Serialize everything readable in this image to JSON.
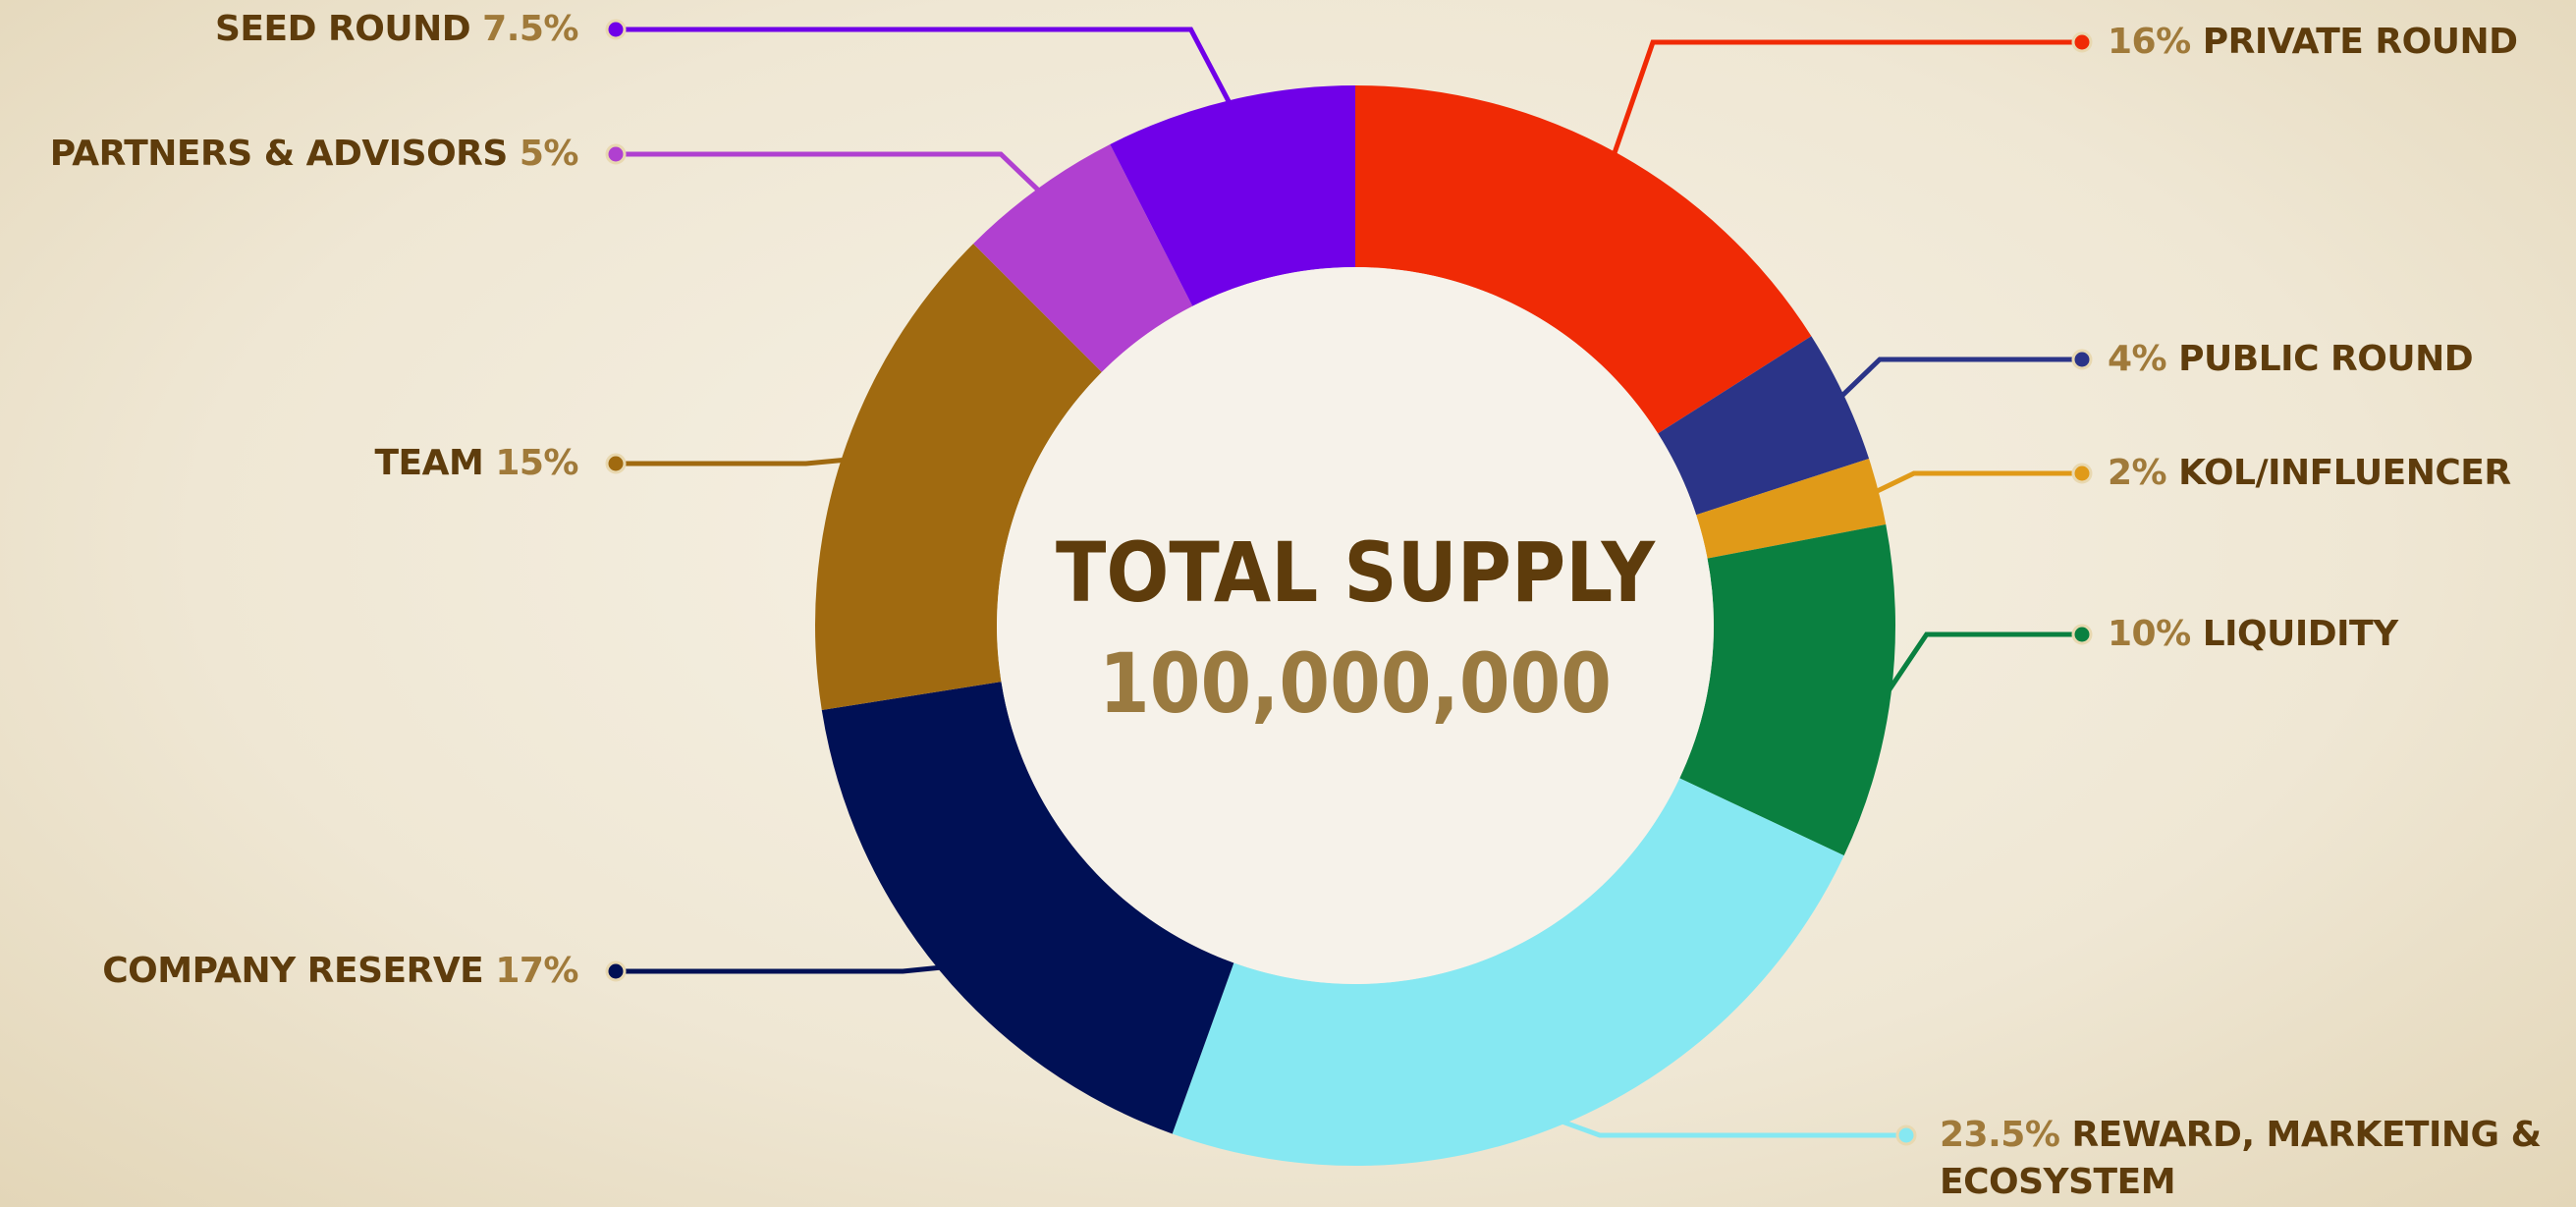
{
  "chart_data": {
    "type": "donut",
    "center_title": "TOTAL SUPPLY",
    "center_value": "100,000,000",
    "categories": [
      "PRIVATE ROUND",
      "PUBLIC ROUND",
      "KOL/INFLUENCER",
      "LIQUIDITY",
      "REWARD, MARKETING & ECOSYSTEM",
      "COMPANY RESERVE",
      "TEAM",
      "PARTNERS & ADVISORS",
      "SEED ROUND"
    ],
    "values": [
      16,
      4,
      2,
      10,
      23.5,
      17,
      15,
      5,
      7.5
    ],
    "value_labels": [
      "16%",
      "4%",
      "2%",
      "10%",
      "23.5%",
      "17%",
      "15%",
      "5%",
      "7.5%"
    ],
    "colors": [
      "#f02a05",
      "#2b3488",
      "#e09a18",
      "#0a8040",
      "#86e8f2",
      "#001055",
      "#a06a10",
      "#b040d0",
      "#7000e8"
    ]
  }
}
